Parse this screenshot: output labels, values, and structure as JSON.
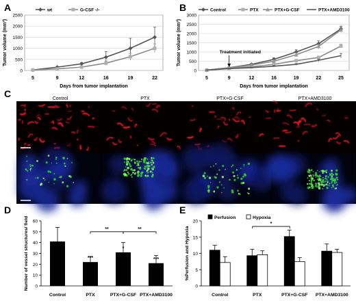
{
  "panels": {
    "A": {
      "letter": "A"
    },
    "B": {
      "letter": "B"
    },
    "C": {
      "letter": "C",
      "labels": [
        "Control",
        "PTX",
        "PTX+G-CSF",
        "PTX+AMD3100"
      ]
    },
    "D": {
      "letter": "D"
    },
    "E": {
      "letter": "E"
    }
  },
  "colors": {
    "line_dark": "#555555",
    "line_gray": "#8a8a8a",
    "line_light": "#b5b5b5",
    "bar_black": "#000000",
    "bar_white": "#ffffff"
  },
  "chart_data": [
    {
      "id": "A",
      "type": "line",
      "title": "",
      "xlabel": "Days from tumor implantation",
      "ylabel": "Tumor volume (mm³)",
      "x": [
        5,
        9,
        12,
        16,
        19,
        22
      ],
      "ylim": [
        0,
        2500
      ],
      "yticks": [
        0,
        500,
        1000,
        1500,
        2000,
        2500
      ],
      "legend_position": "top",
      "series": [
        {
          "name": "wt",
          "marker": "diamond",
          "values": [
            20,
            150,
            300,
            600,
            1000,
            1500
          ],
          "errors": [
            5,
            30,
            60,
            250,
            450,
            450
          ]
        },
        {
          "name": "G-CSF -/-",
          "marker": "square",
          "values": [
            20,
            70,
            150,
            330,
            620,
            1000
          ],
          "errors": [
            5,
            20,
            40,
            100,
            150,
            200
          ]
        }
      ]
    },
    {
      "id": "B",
      "type": "line",
      "title": "",
      "xlabel": "Days from tumor implantation",
      "ylabel": "Tumor volume (mm³)",
      "x": [
        5,
        9,
        12,
        16,
        19,
        22,
        25
      ],
      "ylim": [
        0,
        3000
      ],
      "yticks": [
        0,
        500,
        1000,
        1500,
        2000,
        2500,
        3000
      ],
      "legend_position": "top",
      "annotation": "Treatment initiated",
      "series": [
        {
          "name": "Control",
          "marker": "diamond",
          "values": [
            20,
            150,
            330,
            600,
            1000,
            1450,
            2250
          ],
          "errors": [
            5,
            20,
            40,
            80,
            120,
            150,
            150
          ]
        },
        {
          "name": "PTX",
          "marker": "square",
          "values": [
            20,
            120,
            200,
            330,
            530,
            700,
            1320
          ],
          "errors": [
            5,
            20,
            30,
            50,
            70,
            80,
            100
          ]
        },
        {
          "name": "PTX+G-CSF",
          "marker": "triangle",
          "values": [
            20,
            150,
            290,
            500,
            850,
            1300,
            2200
          ],
          "errors": [
            5,
            20,
            40,
            80,
            110,
            130,
            150
          ]
        },
        {
          "name": "PTX+AMD3100",
          "marker": "none",
          "values": [
            20,
            100,
            150,
            230,
            330,
            550,
            800
          ],
          "errors": [
            5,
            15,
            25,
            40,
            50,
            60,
            120
          ]
        }
      ]
    },
    {
      "id": "D",
      "type": "bar",
      "title": "",
      "xlabel": "",
      "ylabel": "Number of vessel structures/ field",
      "categories": [
        "Control",
        "PTX",
        "PTX+G-CSF",
        "PTX+AMD3100"
      ],
      "ylim": [
        0,
        60
      ],
      "yticks": [
        0,
        10,
        20,
        30,
        40,
        50,
        60
      ],
      "series": [
        {
          "name": "",
          "values": [
            41,
            22,
            31,
            21
          ],
          "errors": [
            13,
            5,
            9,
            7
          ]
        }
      ],
      "significance": [
        "",
        "***",
        "*",
        "***"
      ],
      "brackets": [
        {
          "from": 1,
          "to": 2,
          "label": "**"
        },
        {
          "from": 2,
          "to": 3,
          "label": "**"
        }
      ]
    },
    {
      "id": "E",
      "type": "bar",
      "title": "",
      "xlabel": "",
      "ylabel": "%Perfusion and Hypoxia",
      "categories": [
        "Control",
        "PTX",
        "PTX+G-CSF",
        "PTX+AMD3100"
      ],
      "ylim": [
        0,
        20
      ],
      "yticks": [
        0,
        5,
        10,
        15,
        20
      ],
      "legend_position": "top",
      "series": [
        {
          "name": "Perfusion",
          "values": [
            11,
            9.3,
            15.2,
            10.7
          ],
          "errors": [
            1.5,
            2,
            2,
            2.2
          ]
        },
        {
          "name": "Hypoxia",
          "values": [
            7.2,
            9.6,
            7.5,
            10.3
          ],
          "errors": [
            1.8,
            1.2,
            1.2,
            1
          ]
        }
      ],
      "brackets": [
        {
          "from": 1,
          "to": 2,
          "label": "*"
        }
      ]
    }
  ]
}
